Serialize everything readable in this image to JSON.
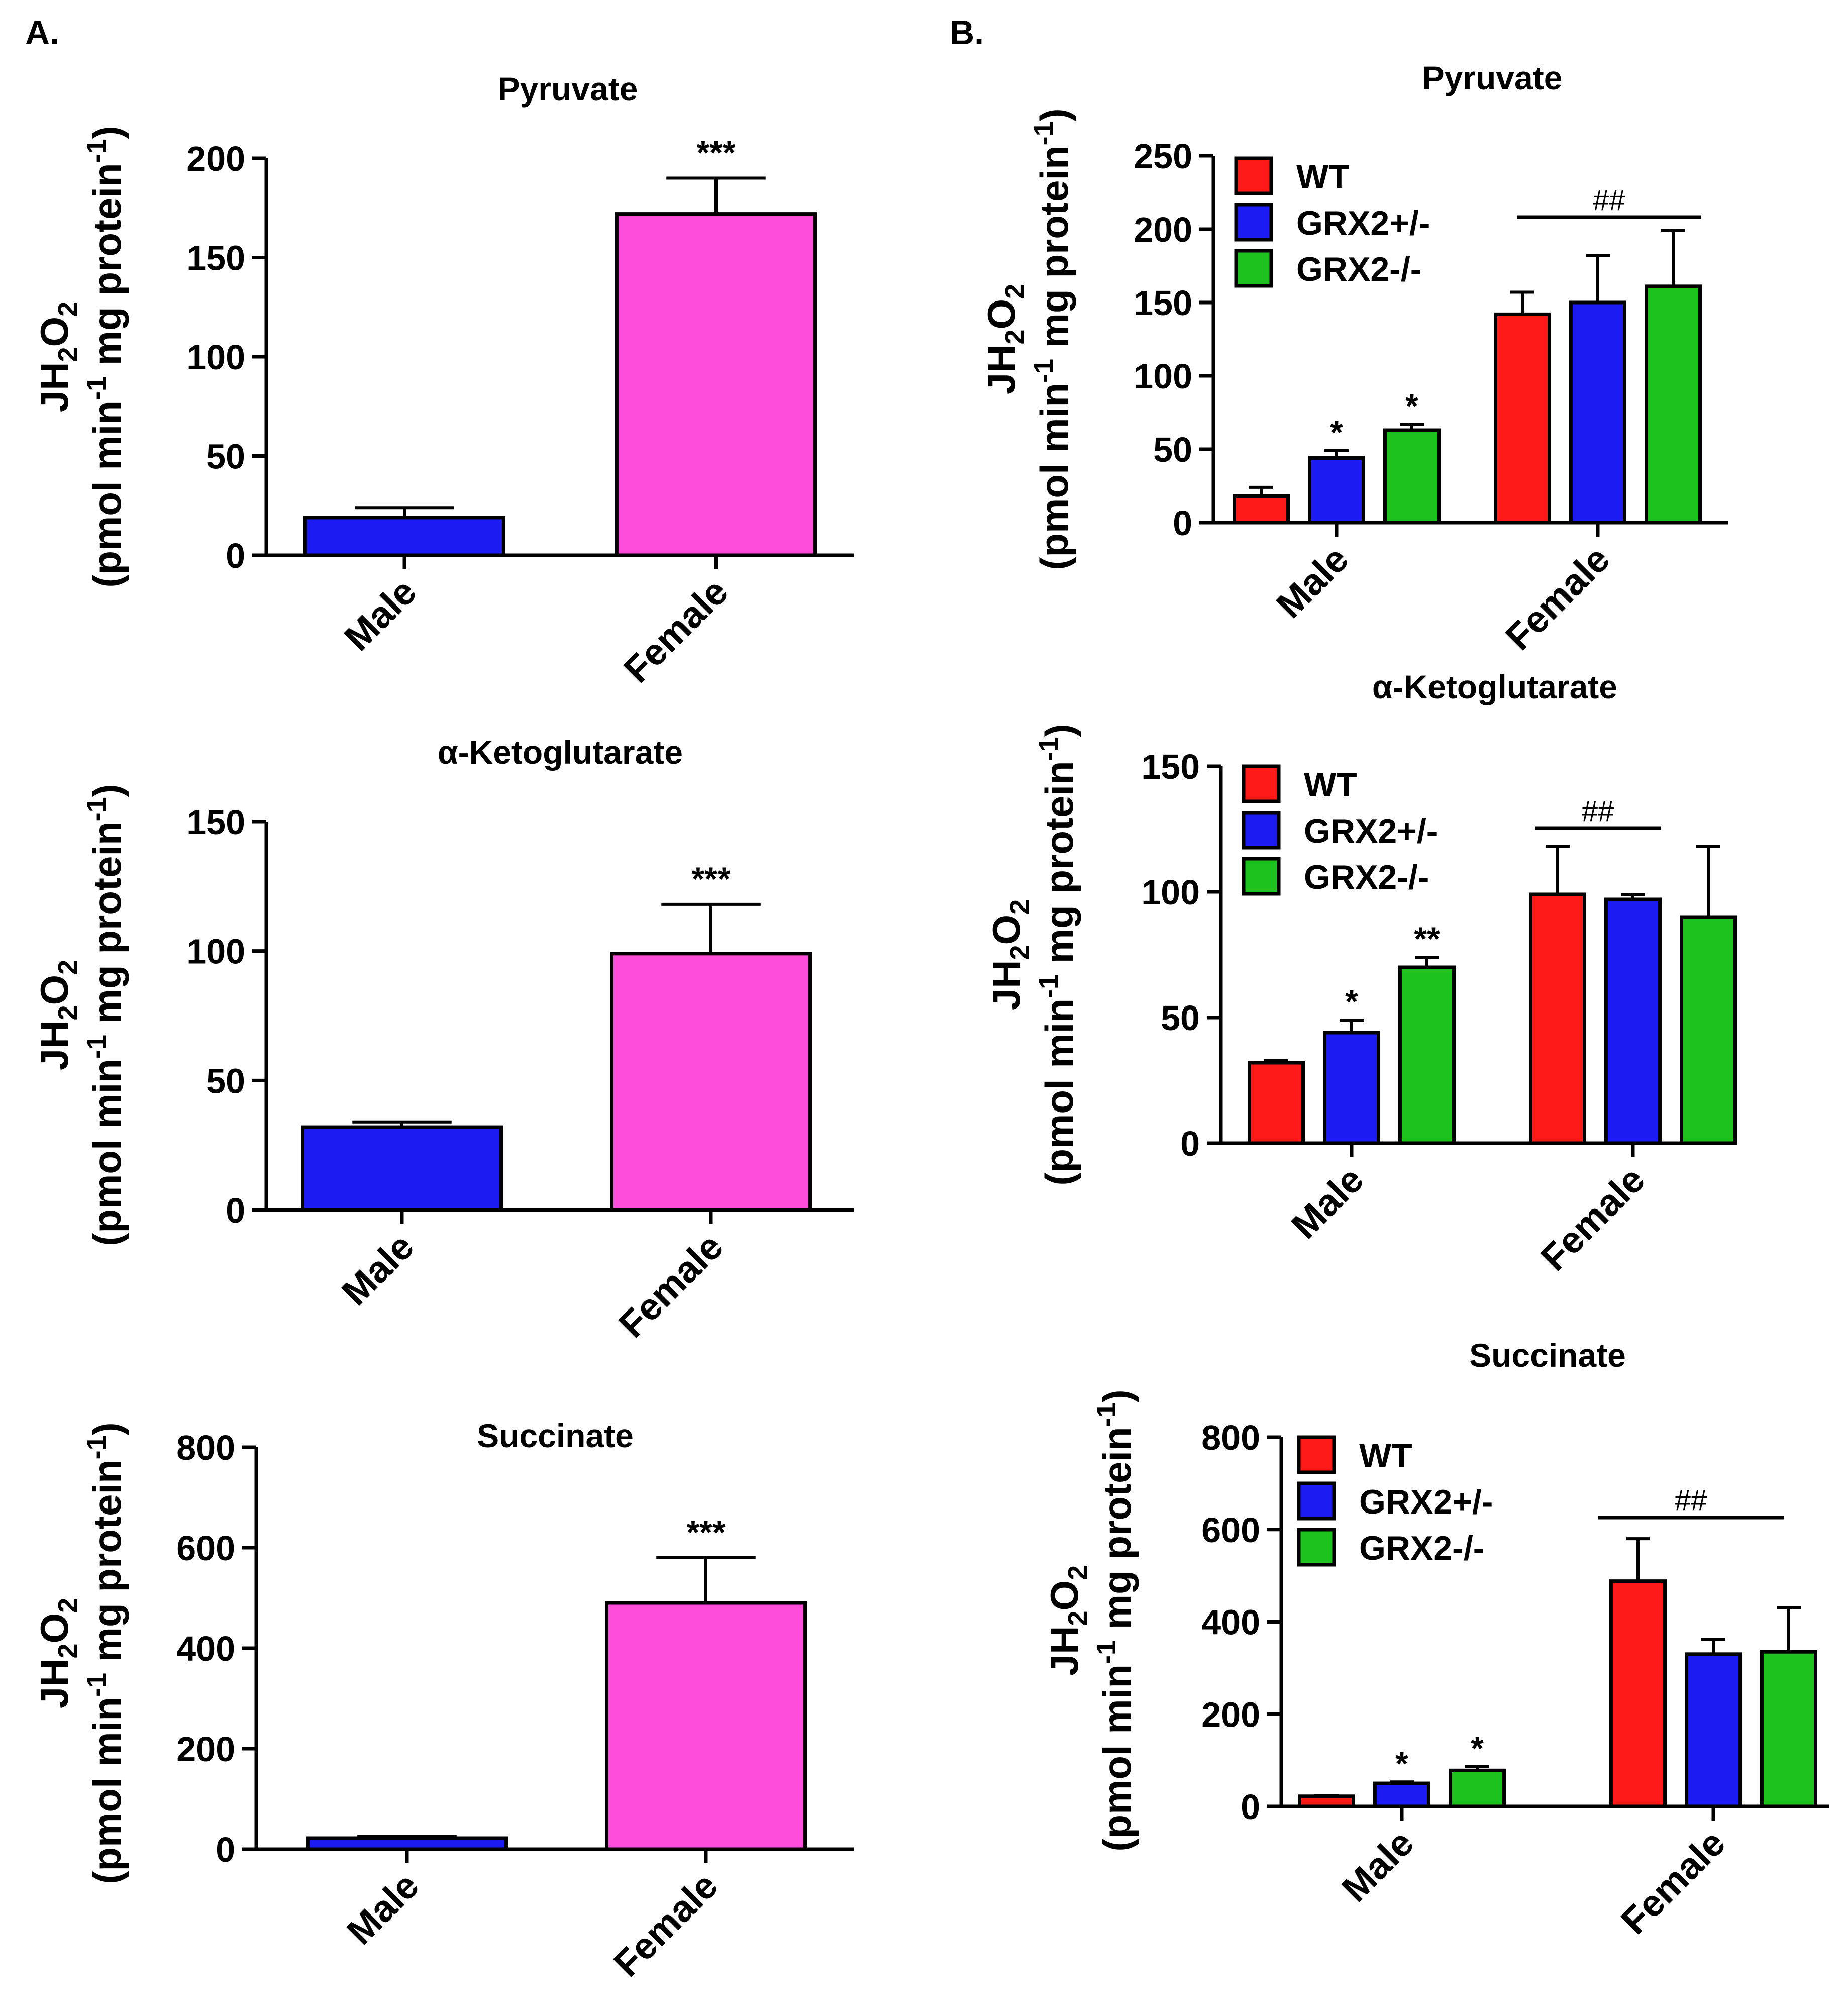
{
  "panels": [
    {
      "label": "A."
    },
    {
      "label": "B."
    }
  ],
  "axis_labels": {
    "y_line1_main": "JH",
    "y_line1_sub": "2",
    "y_line1_mid": "O",
    "y_line1_sub2": "2",
    "y_line2_a": "(pmol min",
    "y_line2_sup1": "-1",
    "y_line2_b": " mg protein",
    "y_line2_sup2": "-1",
    "y_line2_c": ")"
  },
  "colors": {
    "male_single": "#1c1cf2",
    "female_single": "#ff4ddb",
    "WT": "#ff1a1a",
    "GRX2+/-": "#1c1cf2",
    "GRX2-/-": "#1ec21e"
  },
  "chart_data": [
    {
      "id": "A-pyruvate",
      "type": "bar",
      "title": "Pyruvate",
      "categories": [
        "Male",
        "Female"
      ],
      "values": [
        19,
        172
      ],
      "errors": [
        5,
        18
      ],
      "ylim": [
        0,
        200
      ],
      "yticks": [
        0,
        50,
        100,
        150,
        200
      ],
      "ylabel": "JH2O2 (pmol min-1 mg protein-1)",
      "annotations": [
        {
          "category": "Female",
          "text": "***"
        }
      ]
    },
    {
      "id": "A-akg",
      "type": "bar",
      "title": "α-Ketoglutarate",
      "categories": [
        "Male",
        "Female"
      ],
      "values": [
        32,
        99
      ],
      "errors": [
        2,
        19
      ],
      "ylim": [
        0,
        150
      ],
      "yticks": [
        0,
        50,
        100,
        150
      ],
      "ylabel": "JH2O2 (pmol min-1 mg protein-1)",
      "annotations": [
        {
          "category": "Female",
          "text": "***"
        }
      ]
    },
    {
      "id": "A-succinate",
      "type": "bar",
      "title": "Succinate",
      "categories": [
        "Male",
        "Female"
      ],
      "values": [
        22,
        490
      ],
      "errors": [
        3,
        90
      ],
      "ylim": [
        0,
        800
      ],
      "yticks": [
        0,
        200,
        400,
        600,
        800
      ],
      "ylabel": "JH2O2 (pmol min-1 mg protein-1)",
      "annotations": [
        {
          "category": "Female",
          "text": "***"
        }
      ]
    },
    {
      "id": "B-pyruvate",
      "type": "bar",
      "title": "Pyruvate",
      "categories": [
        "Male",
        "Female"
      ],
      "series": [
        {
          "name": "WT",
          "values": [
            18,
            142
          ],
          "errors": [
            6,
            15
          ]
        },
        {
          "name": "GRX2+/-",
          "values": [
            44,
            150
          ],
          "errors": [
            5,
            32
          ]
        },
        {
          "name": "GRX2-/-",
          "values": [
            63,
            161
          ],
          "errors": [
            4,
            38
          ]
        }
      ],
      "ylim": [
        0,
        250
      ],
      "yticks": [
        0,
        50,
        100,
        150,
        200,
        250
      ],
      "ylabel": "JH2O2 (pmol min-1 mg protein-1)",
      "legend_position": "top-left",
      "annotations": [
        {
          "category": "Male",
          "series": "GRX2+/-",
          "text": "*"
        },
        {
          "category": "Male",
          "series": "GRX2-/-",
          "text": "*"
        },
        {
          "category": "Female",
          "type": "bracket",
          "text": "##"
        }
      ]
    },
    {
      "id": "B-akg",
      "type": "bar",
      "title": "α-Ketoglutarate",
      "categories": [
        "Male",
        "Female"
      ],
      "series": [
        {
          "name": "WT",
          "values": [
            32,
            99
          ],
          "errors": [
            1,
            19
          ]
        },
        {
          "name": "GRX2+/-",
          "values": [
            44,
            97
          ],
          "errors": [
            5,
            2
          ]
        },
        {
          "name": "GRX2-/-",
          "values": [
            70,
            90
          ],
          "errors": [
            4,
            28
          ]
        }
      ],
      "ylim": [
        0,
        150
      ],
      "yticks": [
        0,
        50,
        100,
        150
      ],
      "ylabel": "JH2O2 (pmol min-1 mg protein-1)",
      "legend_position": "top-left",
      "annotations": [
        {
          "category": "Male",
          "series": "GRX2+/-",
          "text": "*"
        },
        {
          "category": "Male",
          "series": "GRX2-/-",
          "text": "**"
        },
        {
          "category": "Female",
          "type": "bracket",
          "text": "##"
        }
      ]
    },
    {
      "id": "B-succinate",
      "type": "bar",
      "title": "Succinate",
      "categories": [
        "Male",
        "Female"
      ],
      "series": [
        {
          "name": "WT",
          "values": [
            22,
            488
          ],
          "errors": [
            2,
            92
          ]
        },
        {
          "name": "GRX2+/-",
          "values": [
            50,
            330
          ],
          "errors": [
            3,
            32
          ]
        },
        {
          "name": "GRX2-/-",
          "values": [
            78,
            335
          ],
          "errors": [
            8,
            95
          ]
        }
      ],
      "ylim": [
        0,
        800
      ],
      "yticks": [
        0,
        200,
        400,
        600,
        800
      ],
      "ylabel": "JH2O2 (pmol min-1 mg protein-1)",
      "legend_position": "top-left",
      "annotations": [
        {
          "category": "Male",
          "series": "GRX2+/-",
          "text": "*"
        },
        {
          "category": "Male",
          "series": "GRX2-/-",
          "text": "*"
        },
        {
          "category": "Female",
          "type": "bracket",
          "text": "##"
        }
      ]
    }
  ]
}
